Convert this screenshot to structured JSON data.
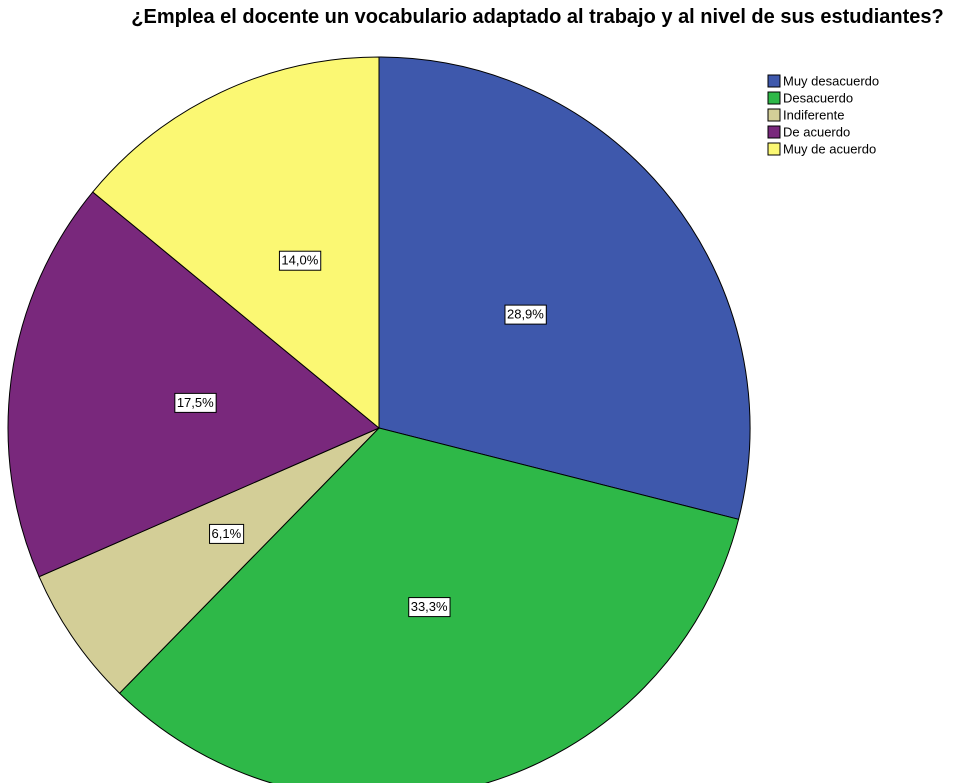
{
  "chart_data": {
    "type": "pie",
    "title": "¿Emplea el docente un vocabulario adaptado al trabajo y al nivel de sus estudiantes?",
    "categories": [
      "Muy desacuerdo",
      "Desacuerdo",
      "Indiferente",
      "De acuerdo",
      "Muy de acuerdo"
    ],
    "values": [
      28.9,
      33.3,
      6.1,
      17.5,
      14.0
    ],
    "value_labels": [
      "28,9%",
      "33,3%",
      "6,1%",
      "17,5%",
      "14,0%"
    ],
    "colors": [
      "#3e58ac",
      "#2eb848",
      "#d3ce97",
      "#79287c",
      "#fbf873"
    ],
    "legend": "top-right"
  }
}
